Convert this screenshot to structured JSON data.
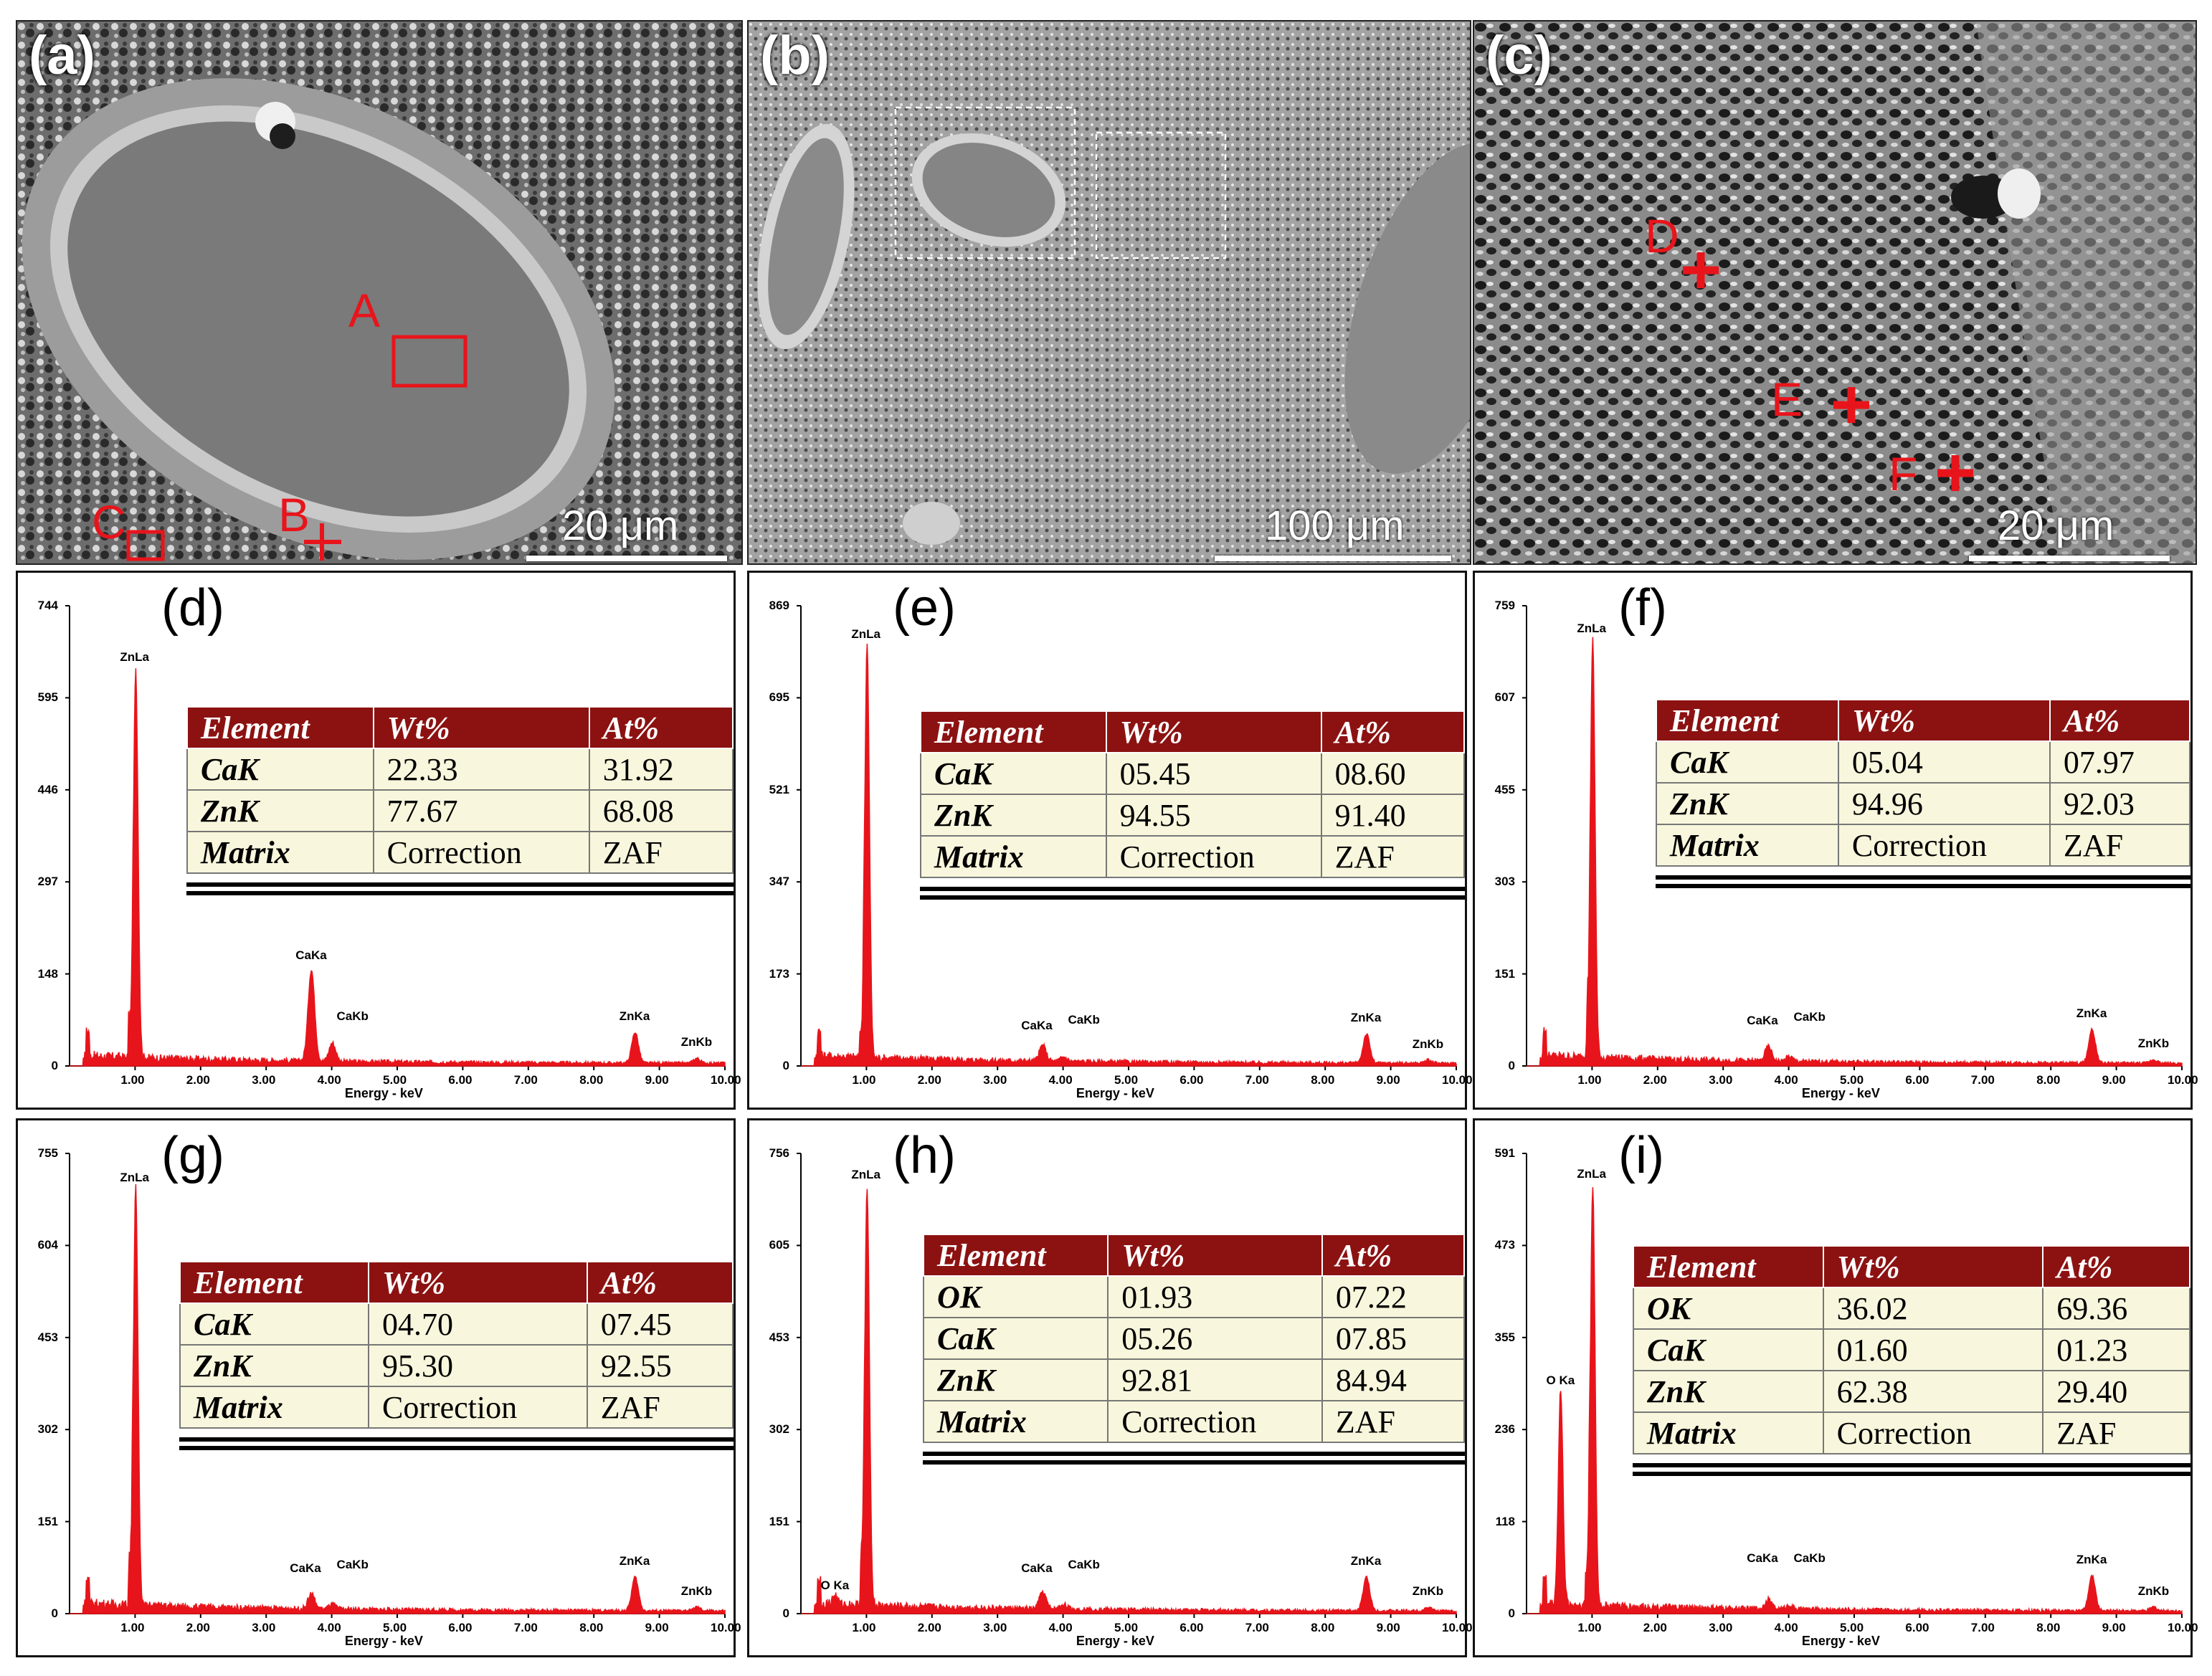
{
  "sem_panels": [
    {
      "label": "(a)",
      "scale": "20 μm",
      "markers": [
        {
          "letter": "A",
          "shape": "box"
        },
        {
          "letter": "B",
          "shape": "cross"
        },
        {
          "letter": "C",
          "shape": "box"
        }
      ]
    },
    {
      "label": "(b)",
      "scale": "100 μm",
      "markers": []
    },
    {
      "label": "(c)",
      "scale": "20 μm",
      "markers": [
        {
          "letter": "D",
          "shape": "cross"
        },
        {
          "letter": "E",
          "shape": "cross"
        },
        {
          "letter": "F",
          "shape": "cross"
        }
      ]
    }
  ],
  "colors": {
    "spectrum": "#e8141b",
    "table_header": "#8c1212",
    "table_body": "#f8f6dc",
    "marker": "#e8141b"
  },
  "chart_data": [
    {
      "type": "line",
      "label": "(d)",
      "xlabel": "Energy - keV",
      "x_ticks": [
        "1.00",
        "2.00",
        "3.00",
        "4.00",
        "5.00",
        "6.00",
        "7.00",
        "8.00",
        "9.00",
        "10.00"
      ],
      "y_ticks": [
        "0",
        "148",
        "297",
        "446",
        "595",
        "744"
      ],
      "ylim": [
        0,
        744
      ],
      "xlim": [
        0,
        10
      ],
      "peaks": [
        {
          "name": "ZnLa",
          "x": 1.01,
          "y": 630
        },
        {
          "name": "CaKa",
          "x": 3.69,
          "y": 148
        },
        {
          "name": "CaKb",
          "x": 4.01,
          "y": 30
        },
        {
          "name": "ZnKa",
          "x": 8.63,
          "y": 50
        },
        {
          "name": "ZnKb",
          "x": 9.57,
          "y": 8
        }
      ],
      "table": {
        "headers": [
          "Element",
          "Wt%",
          "At%"
        ],
        "rows": [
          [
            "CaK",
            "22.33",
            "31.92"
          ],
          [
            "ZnK",
            "77.67",
            "68.08"
          ],
          [
            "Matrix",
            "Correction",
            "ZAF"
          ]
        ]
      }
    },
    {
      "type": "line",
      "label": "(e)",
      "xlabel": "Energy - keV",
      "x_ticks": [
        "1.00",
        "2.00",
        "3.00",
        "4.00",
        "5.00",
        "6.00",
        "7.00",
        "8.00",
        "9.00",
        "10.00"
      ],
      "y_ticks": [
        "0",
        "173",
        "347",
        "521",
        "695",
        "869"
      ],
      "ylim": [
        0,
        869
      ],
      "xlim": [
        0,
        10
      ],
      "peaks": [
        {
          "name": "ZnLa",
          "x": 1.01,
          "y": 780
        },
        {
          "name": "CaKa",
          "x": 3.69,
          "y": 30
        },
        {
          "name": "CaKb",
          "x": 4.01,
          "y": 8
        },
        {
          "name": "ZnKa",
          "x": 8.63,
          "y": 55
        },
        {
          "name": "ZnKb",
          "x": 9.57,
          "y": 6
        }
      ],
      "table": {
        "headers": [
          "Element",
          "Wt%",
          "At%"
        ],
        "rows": [
          [
            "CaK",
            "05.45",
            "08.60"
          ],
          [
            "ZnK",
            "94.55",
            "91.40"
          ],
          [
            "Matrix",
            "Correction",
            "ZAF"
          ]
        ]
      }
    },
    {
      "type": "line",
      "label": "(f)",
      "xlabel": "Energy - keV",
      "x_ticks": [
        "1.00",
        "2.00",
        "3.00",
        "4.00",
        "5.00",
        "6.00",
        "7.00",
        "8.00",
        "9.00",
        "10.00"
      ],
      "y_ticks": [
        "0",
        "151",
        "303",
        "455",
        "607",
        "759"
      ],
      "ylim": [
        0,
        759
      ],
      "xlim": [
        0,
        10
      ],
      "peaks": [
        {
          "name": "ZnLa",
          "x": 1.01,
          "y": 690
        },
        {
          "name": "CaKa",
          "x": 3.69,
          "y": 24
        },
        {
          "name": "CaKb",
          "x": 4.01,
          "y": 8
        },
        {
          "name": "ZnKa",
          "x": 8.63,
          "y": 55
        },
        {
          "name": "ZnKb",
          "x": 9.57,
          "y": 6
        }
      ],
      "table": {
        "headers": [
          "Element",
          "Wt%",
          "At%"
        ],
        "rows": [
          [
            "CaK",
            "05.04",
            "07.97"
          ],
          [
            "ZnK",
            "94.96",
            "92.03"
          ],
          [
            "Matrix",
            "Correction",
            "ZAF"
          ]
        ]
      }
    },
    {
      "type": "line",
      "label": "(g)",
      "xlabel": "Energy - keV",
      "x_ticks": [
        "1.00",
        "2.00",
        "3.00",
        "4.00",
        "5.00",
        "6.00",
        "7.00",
        "8.00",
        "9.00",
        "10.00"
      ],
      "y_ticks": [
        "0",
        "151",
        "302",
        "453",
        "604",
        "755"
      ],
      "ylim": [
        0,
        755
      ],
      "xlim": [
        0,
        10
      ],
      "peaks": [
        {
          "name": "ZnLa",
          "x": 1.01,
          "y": 685
        },
        {
          "name": "CaKa",
          "x": 3.69,
          "y": 25
        },
        {
          "name": "CaKb",
          "x": 4.01,
          "y": 8
        },
        {
          "name": "ZnKa",
          "x": 8.63,
          "y": 55
        },
        {
          "name": "ZnKb",
          "x": 9.57,
          "y": 6
        }
      ],
      "table": {
        "headers": [
          "Element",
          "Wt%",
          "At%"
        ],
        "rows": [
          [
            "CaK",
            "04.70",
            "07.45"
          ],
          [
            "ZnK",
            "95.30",
            "92.55"
          ],
          [
            "Matrix",
            "Correction",
            "ZAF"
          ]
        ]
      }
    },
    {
      "type": "line",
      "label": "(h)",
      "xlabel": "Energy - keV",
      "x_ticks": [
        "1.00",
        "2.00",
        "3.00",
        "4.00",
        "5.00",
        "6.00",
        "7.00",
        "8.00",
        "9.00",
        "10.00"
      ],
      "y_ticks": [
        "0",
        "151",
        "302",
        "453",
        "605",
        "756"
      ],
      "ylim": [
        0,
        756
      ],
      "xlim": [
        0,
        10
      ],
      "peaks": [
        {
          "name": "O Ka",
          "x": 0.52,
          "y": 15
        },
        {
          "name": "ZnLa",
          "x": 1.01,
          "y": 690
        },
        {
          "name": "CaKa",
          "x": 3.69,
          "y": 28
        },
        {
          "name": "CaKb",
          "x": 4.01,
          "y": 8
        },
        {
          "name": "ZnKa",
          "x": 8.63,
          "y": 55
        },
        {
          "name": "ZnKb",
          "x": 9.57,
          "y": 6
        }
      ],
      "table": {
        "headers": [
          "Element",
          "Wt%",
          "At%"
        ],
        "rows": [
          [
            "OK",
            "01.93",
            "07.22"
          ],
          [
            "CaK",
            "05.26",
            "07.85"
          ],
          [
            "ZnK",
            "92.81",
            "84.94"
          ],
          [
            "Matrix",
            "Correction",
            "ZAF"
          ]
        ]
      }
    },
    {
      "type": "line",
      "label": "(i)",
      "xlabel": "Energy - keV",
      "x_ticks": [
        "1.00",
        "2.00",
        "3.00",
        "4.00",
        "5.00",
        "6.00",
        "7.00",
        "8.00",
        "9.00",
        "10.00"
      ],
      "y_ticks": [
        "0",
        "118",
        "236",
        "355",
        "473",
        "591"
      ],
      "ylim": [
        0,
        591
      ],
      "xlim": [
        0,
        10
      ],
      "peaks": [
        {
          "name": "O Ka",
          "x": 0.52,
          "y": 275
        },
        {
          "name": "ZnLa",
          "x": 1.01,
          "y": 540
        },
        {
          "name": "CaKa",
          "x": 3.69,
          "y": 12
        },
        {
          "name": "CaKb",
          "x": 4.01,
          "y": 5
        },
        {
          "name": "ZnKa",
          "x": 8.63,
          "y": 45
        },
        {
          "name": "ZnKb",
          "x": 9.57,
          "y": 5
        }
      ],
      "table": {
        "headers": [
          "Element",
          "Wt%",
          "At%"
        ],
        "rows": [
          [
            "OK",
            "36.02",
            "69.36"
          ],
          [
            "CaK",
            "01.60",
            "01.23"
          ],
          [
            "ZnK",
            "62.38",
            "29.40"
          ],
          [
            "Matrix",
            "Correction",
            "ZAF"
          ]
        ]
      }
    }
  ]
}
